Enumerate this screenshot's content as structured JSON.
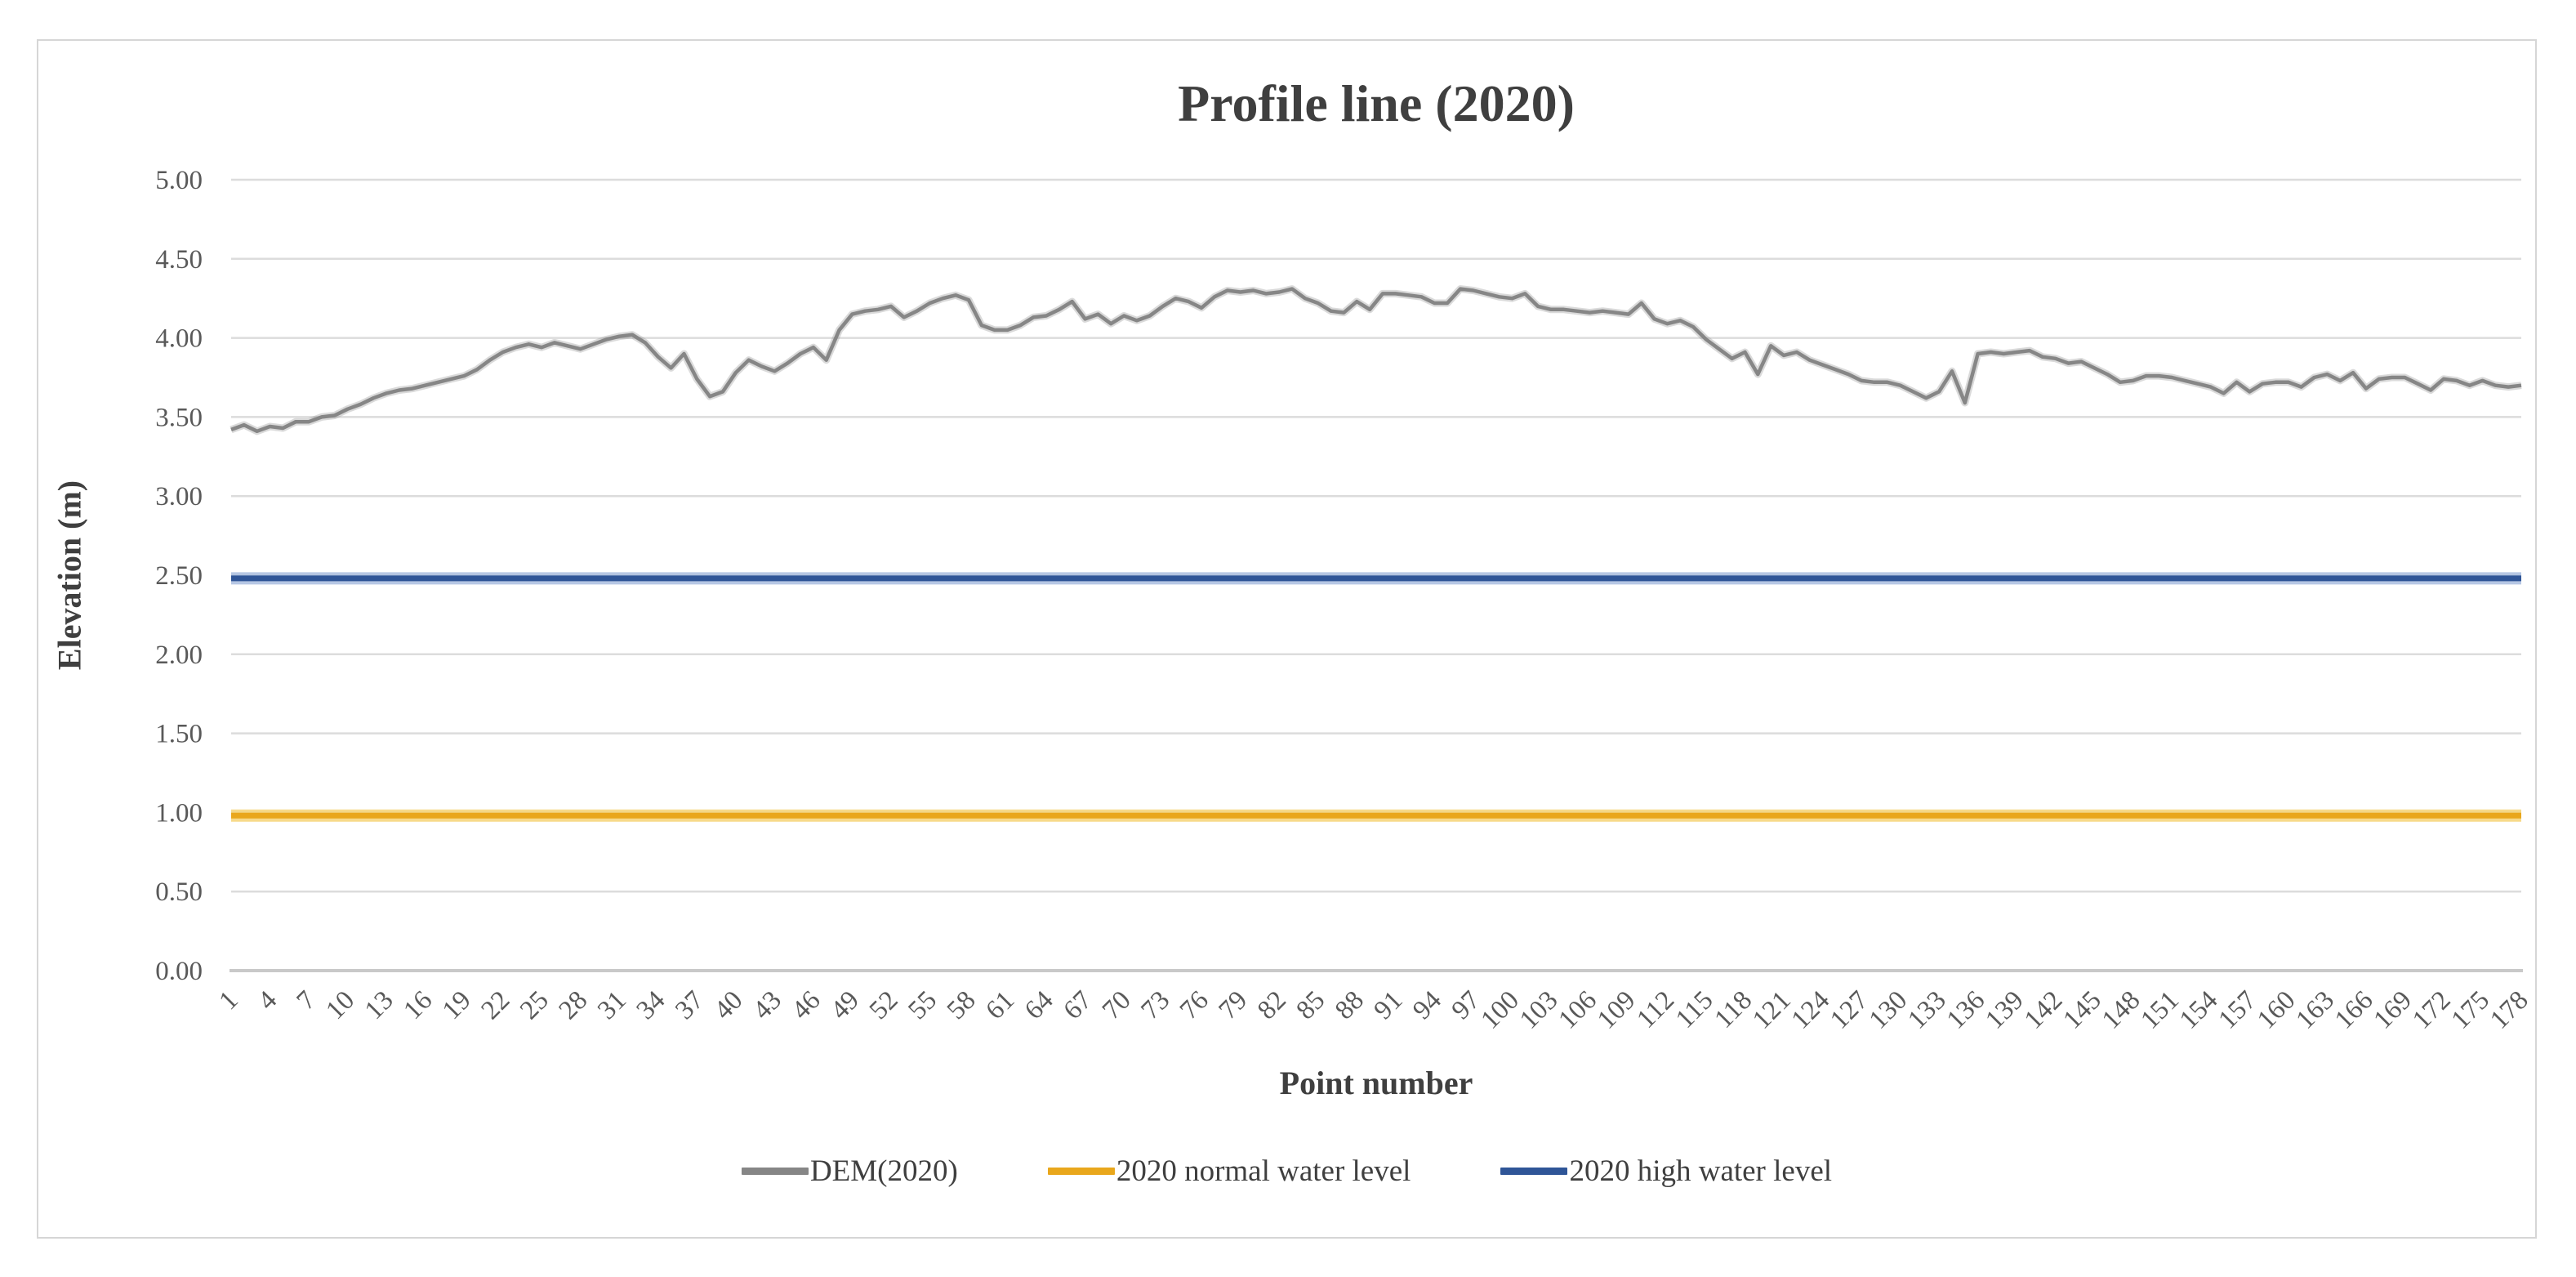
{
  "figure": {
    "background_color": "#ffffff",
    "border_color": "#d6d6d6",
    "gridline_color": "#dcdcdc",
    "axis_line_color": "#c9c9c9",
    "tick_text_color": "#595959",
    "text_color": "#3f3f3f"
  },
  "chart_data": {
    "type": "line",
    "title": "Profile line (2020)",
    "xlabel": "Point number",
    "ylabel": "Elevation (m)",
    "ylim": [
      0,
      5
    ],
    "ytick_step": 0.5,
    "grid": true,
    "legend_position": "bottom",
    "x_points": 178,
    "y_tick_labels_top_to_bottom": [
      "5.00",
      "4.50",
      "4.00",
      "3.50",
      "3.00",
      "2.50",
      "2.00",
      "1.50",
      "1.00",
      "0.50",
      "0.00"
    ],
    "x_tick_labels": [
      "1",
      "4",
      "7",
      "10",
      "13",
      "16",
      "19",
      "22",
      "25",
      "28",
      "31",
      "34",
      "37",
      "40",
      "43",
      "46",
      "49",
      "52",
      "55",
      "58",
      "61",
      "64",
      "67",
      "70",
      "73",
      "76",
      "79",
      "82",
      "85",
      "88",
      "91",
      "94",
      "97",
      "100",
      "103",
      "106",
      "109",
      "112",
      "115",
      "118",
      "121",
      "124",
      "127",
      "130",
      "133",
      "136",
      "139",
      "142",
      "145",
      "148",
      "151",
      "154",
      "157",
      "160",
      "163",
      "166",
      "169",
      "172",
      "175",
      "178"
    ],
    "series": [
      {
        "name": "DEM(2020)",
        "kind": "profile",
        "color": "#868686",
        "values": [
          3.42,
          3.45,
          3.41,
          3.44,
          3.43,
          3.47,
          3.47,
          3.5,
          3.51,
          3.55,
          3.58,
          3.62,
          3.65,
          3.67,
          3.68,
          3.7,
          3.72,
          3.74,
          3.76,
          3.8,
          3.86,
          3.91,
          3.94,
          3.96,
          3.94,
          3.97,
          3.95,
          3.93,
          3.96,
          3.99,
          4.01,
          4.02,
          3.97,
          3.88,
          3.81,
          3.9,
          3.74,
          3.63,
          3.66,
          3.78,
          3.86,
          3.82,
          3.79,
          3.84,
          3.9,
          3.94,
          3.86,
          4.05,
          4.15,
          4.17,
          4.18,
          4.2,
          4.13,
          4.17,
          4.22,
          4.25,
          4.27,
          4.24,
          4.08,
          4.05,
          4.05,
          4.08,
          4.13,
          4.14,
          4.18,
          4.23,
          4.12,
          4.15,
          4.09,
          4.14,
          4.11,
          4.14,
          4.2,
          4.25,
          4.23,
          4.19,
          4.26,
          4.3,
          4.29,
          4.3,
          4.28,
          4.29,
          4.31,
          4.25,
          4.22,
          4.17,
          4.16,
          4.23,
          4.18,
          4.28,
          4.28,
          4.27,
          4.26,
          4.22,
          4.22,
          4.31,
          4.3,
          4.28,
          4.26,
          4.25,
          4.28,
          4.2,
          4.18,
          4.18,
          4.17,
          4.16,
          4.17,
          4.16,
          4.15,
          4.22,
          4.12,
          4.09,
          4.11,
          4.07,
          3.99,
          3.93,
          3.87,
          3.91,
          3.77,
          3.95,
          3.89,
          3.91,
          3.86,
          3.83,
          3.8,
          3.77,
          3.73,
          3.72,
          3.72,
          3.7,
          3.66,
          3.62,
          3.66,
          3.79,
          3.59,
          3.9,
          3.91,
          3.9,
          3.91,
          3.92,
          3.88,
          3.87,
          3.84,
          3.85,
          3.81,
          3.77,
          3.72,
          3.73,
          3.76,
          3.76,
          3.75,
          3.73,
          3.71,
          3.69,
          3.65,
          3.72,
          3.66,
          3.71,
          3.72,
          3.72,
          3.69,
          3.75,
          3.77,
          3.73,
          3.78,
          3.68,
          3.74,
          3.75,
          3.75,
          3.71,
          3.67,
          3.74,
          3.73,
          3.7,
          3.73,
          3.7,
          3.69,
          3.7
        ]
      },
      {
        "name": "2020 normal water level",
        "kind": "constant",
        "color": "#e9a71c",
        "halo_color": "#f6d376",
        "value": 0.98
      },
      {
        "name": "2020 high water level",
        "kind": "constant",
        "color": "#2f5597",
        "halo_color": "#a9bddf",
        "value": 2.48
      }
    ]
  }
}
